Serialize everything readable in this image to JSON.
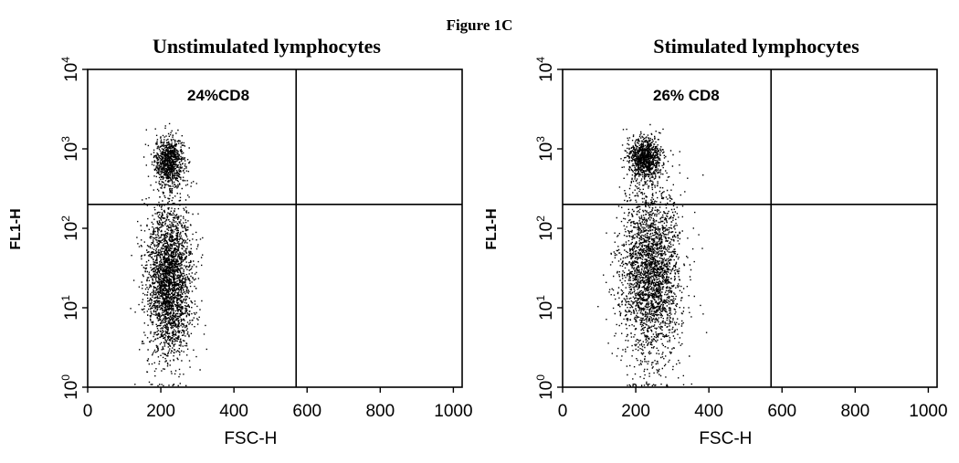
{
  "figure_title": "Figure 1C",
  "chart_data": [
    {
      "type": "scatter",
      "title": "Unstimulated lymphocytes",
      "xlabel": "FSC-H",
      "ylabel": "FL1-H",
      "xlim": [
        0,
        1024
      ],
      "ylim": [
        1,
        10000
      ],
      "yscale": "log",
      "x_ticks": [
        "0",
        "200",
        "400",
        "600",
        "800",
        "1000"
      ],
      "y_ticks": [
        {
          "base": "10",
          "exp": "0"
        },
        {
          "base": "10",
          "exp": "1"
        },
        {
          "base": "10",
          "exp": "2"
        },
        {
          "base": "10",
          "exp": "3"
        },
        {
          "base": "10",
          "exp": "4"
        }
      ],
      "gate": {
        "x": 570,
        "y": 200
      },
      "annotation": "24%CD8",
      "populations": [
        {
          "cx": 222,
          "sx": 20,
          "log_cy": 2.85,
          "slog": 0.15,
          "fraction": 0.24
        },
        {
          "cx": 222,
          "sx": 30,
          "log_cy": 1.35,
          "slog": 0.5,
          "fraction": 0.76
        }
      ]
    },
    {
      "type": "scatter",
      "title": "Stimulated lymphocytes",
      "xlabel": "FSC-H",
      "ylabel": "FL1-H",
      "xlim": [
        0,
        1024
      ],
      "ylim": [
        1,
        10000
      ],
      "yscale": "log",
      "x_ticks": [
        "0",
        "200",
        "400",
        "600",
        "800",
        "1000"
      ],
      "y_ticks": [
        {
          "base": "10",
          "exp": "0"
        },
        {
          "base": "10",
          "exp": "1"
        },
        {
          "base": "10",
          "exp": "2"
        },
        {
          "base": "10",
          "exp": "3"
        },
        {
          "base": "10",
          "exp": "4"
        }
      ],
      "gate": {
        "x": 570,
        "y": 200
      },
      "annotation": "26% CD8",
      "populations": [
        {
          "cx": 222,
          "sx": 22,
          "log_cy": 2.88,
          "slog": 0.13,
          "fraction": 0.26
        },
        {
          "cx": 240,
          "sx": 42,
          "log_cy": 1.45,
          "slog": 0.55,
          "fraction": 0.74
        }
      ]
    }
  ]
}
